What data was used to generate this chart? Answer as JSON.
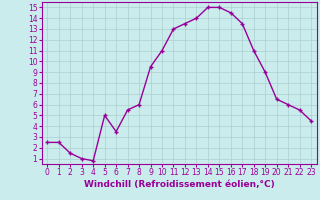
{
  "x": [
    0,
    1,
    2,
    3,
    4,
    5,
    6,
    7,
    8,
    9,
    10,
    11,
    12,
    13,
    14,
    15,
    16,
    17,
    18,
    19,
    20,
    21,
    22,
    23
  ],
  "y": [
    2.5,
    2.5,
    1.5,
    1.0,
    0.8,
    5.0,
    3.5,
    5.5,
    6.0,
    9.5,
    11.0,
    13.0,
    13.5,
    14.0,
    15.0,
    15.0,
    14.5,
    13.5,
    11.0,
    9.0,
    6.5,
    6.0,
    5.5,
    4.5
  ],
  "line_color": "#990099",
  "marker": "+",
  "marker_size": 3,
  "bg_color": "#cbecec",
  "grid_color": "#aacece",
  "xlabel": "Windchill (Refroidissement éolien,°C)",
  "xlabel_color": "#990099",
  "xlabel_fontsize": 6.5,
  "ylabel_ticks": [
    1,
    2,
    3,
    4,
    5,
    6,
    7,
    8,
    9,
    10,
    11,
    12,
    13,
    14,
    15
  ],
  "xlim": [
    -0.5,
    23.5
  ],
  "ylim": [
    0.5,
    15.5
  ],
  "tick_color": "#990099",
  "tick_fontsize": 5.5,
  "line_width": 1.0,
  "frame_color": "#990099",
  "marker_edge_width": 1.0
}
